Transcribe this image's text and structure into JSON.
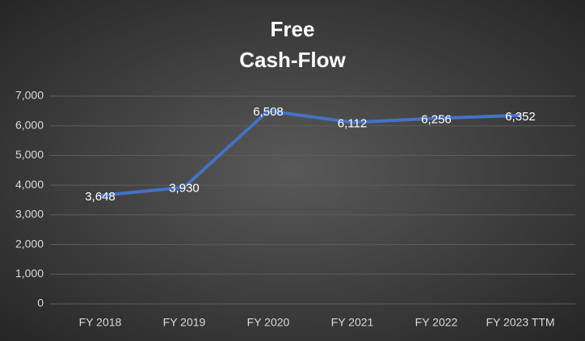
{
  "chart_data": {
    "type": "line",
    "title": [
      "Free",
      "Cash-Flow"
    ],
    "categories": [
      "FY 2018",
      "FY 2019",
      "FY 2020",
      "FY 2021",
      "FY 2022",
      "FY 2023 TTM"
    ],
    "series": [
      {
        "name": "Free Cash-Flow",
        "color": "#4472c4",
        "values": [
          3648,
          3930,
          6508,
          6112,
          6256,
          6352
        ],
        "value_labels": [
          "3,648",
          "3,930",
          "6,508",
          "6,112",
          "6,256",
          "6,352"
        ]
      }
    ],
    "ylim": [
      0,
      7000
    ],
    "yticks": [
      0,
      {
        "value": 1000,
        "label": "1,000"
      },
      {
        "value": 2000,
        "label": "2,000"
      },
      {
        "value": 3000,
        "label": "3,000"
      },
      {
        "value": 4000,
        "label": "4,000"
      },
      {
        "value": 5000,
        "label": "5,000"
      },
      {
        "value": 6000,
        "label": "6,000"
      },
      {
        "value": 7000,
        "label": "7,000"
      }
    ],
    "grid": true
  }
}
